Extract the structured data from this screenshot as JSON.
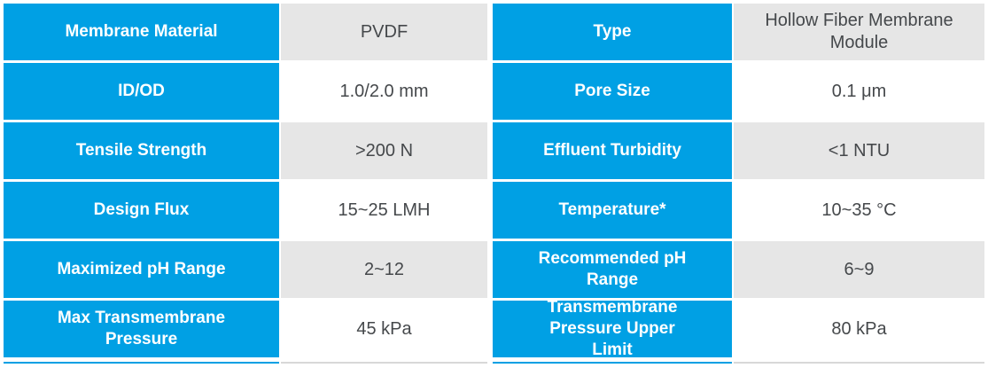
{
  "colors": {
    "accent_blue": "#00A0E4",
    "label_text": "#FFFFFF",
    "value_text": "#45484B",
    "value_alt_row_bg": "#E6E6E6",
    "value_row_bg": "#FFFFFF",
    "bottom_border_gray": "#D8D8D8"
  },
  "table": {
    "rows": [
      {
        "left": {
          "label": "Membrane Material",
          "value": "PVDF"
        },
        "right": {
          "label": "Type",
          "value": "Hollow Fiber Membrane Module"
        }
      },
      {
        "left": {
          "label": "ID/OD",
          "value": "1.0/2.0 mm"
        },
        "right": {
          "label": "Pore Size",
          "value": "0.1 μm"
        }
      },
      {
        "left": {
          "label": "Tensile Strength",
          "value": ">200 N"
        },
        "right": {
          "label": "Effluent Turbidity",
          "value": "<1 NTU"
        }
      },
      {
        "left": {
          "label": "Design Flux",
          "value": "15~25 LMH"
        },
        "right": {
          "label": "Temperature*",
          "value": "10~35 °C"
        }
      },
      {
        "left": {
          "label": "Maximized pH Range",
          "value": "2~12"
        },
        "right": {
          "label": "Recommended pH Range",
          "value": "6~9"
        }
      },
      {
        "left": {
          "label": "Max Transmembrane Pressure",
          "value": "45 kPa"
        },
        "right": {
          "label": "Transmembrane Pressure Upper Limit",
          "value": "80 kPa"
        }
      }
    ]
  }
}
